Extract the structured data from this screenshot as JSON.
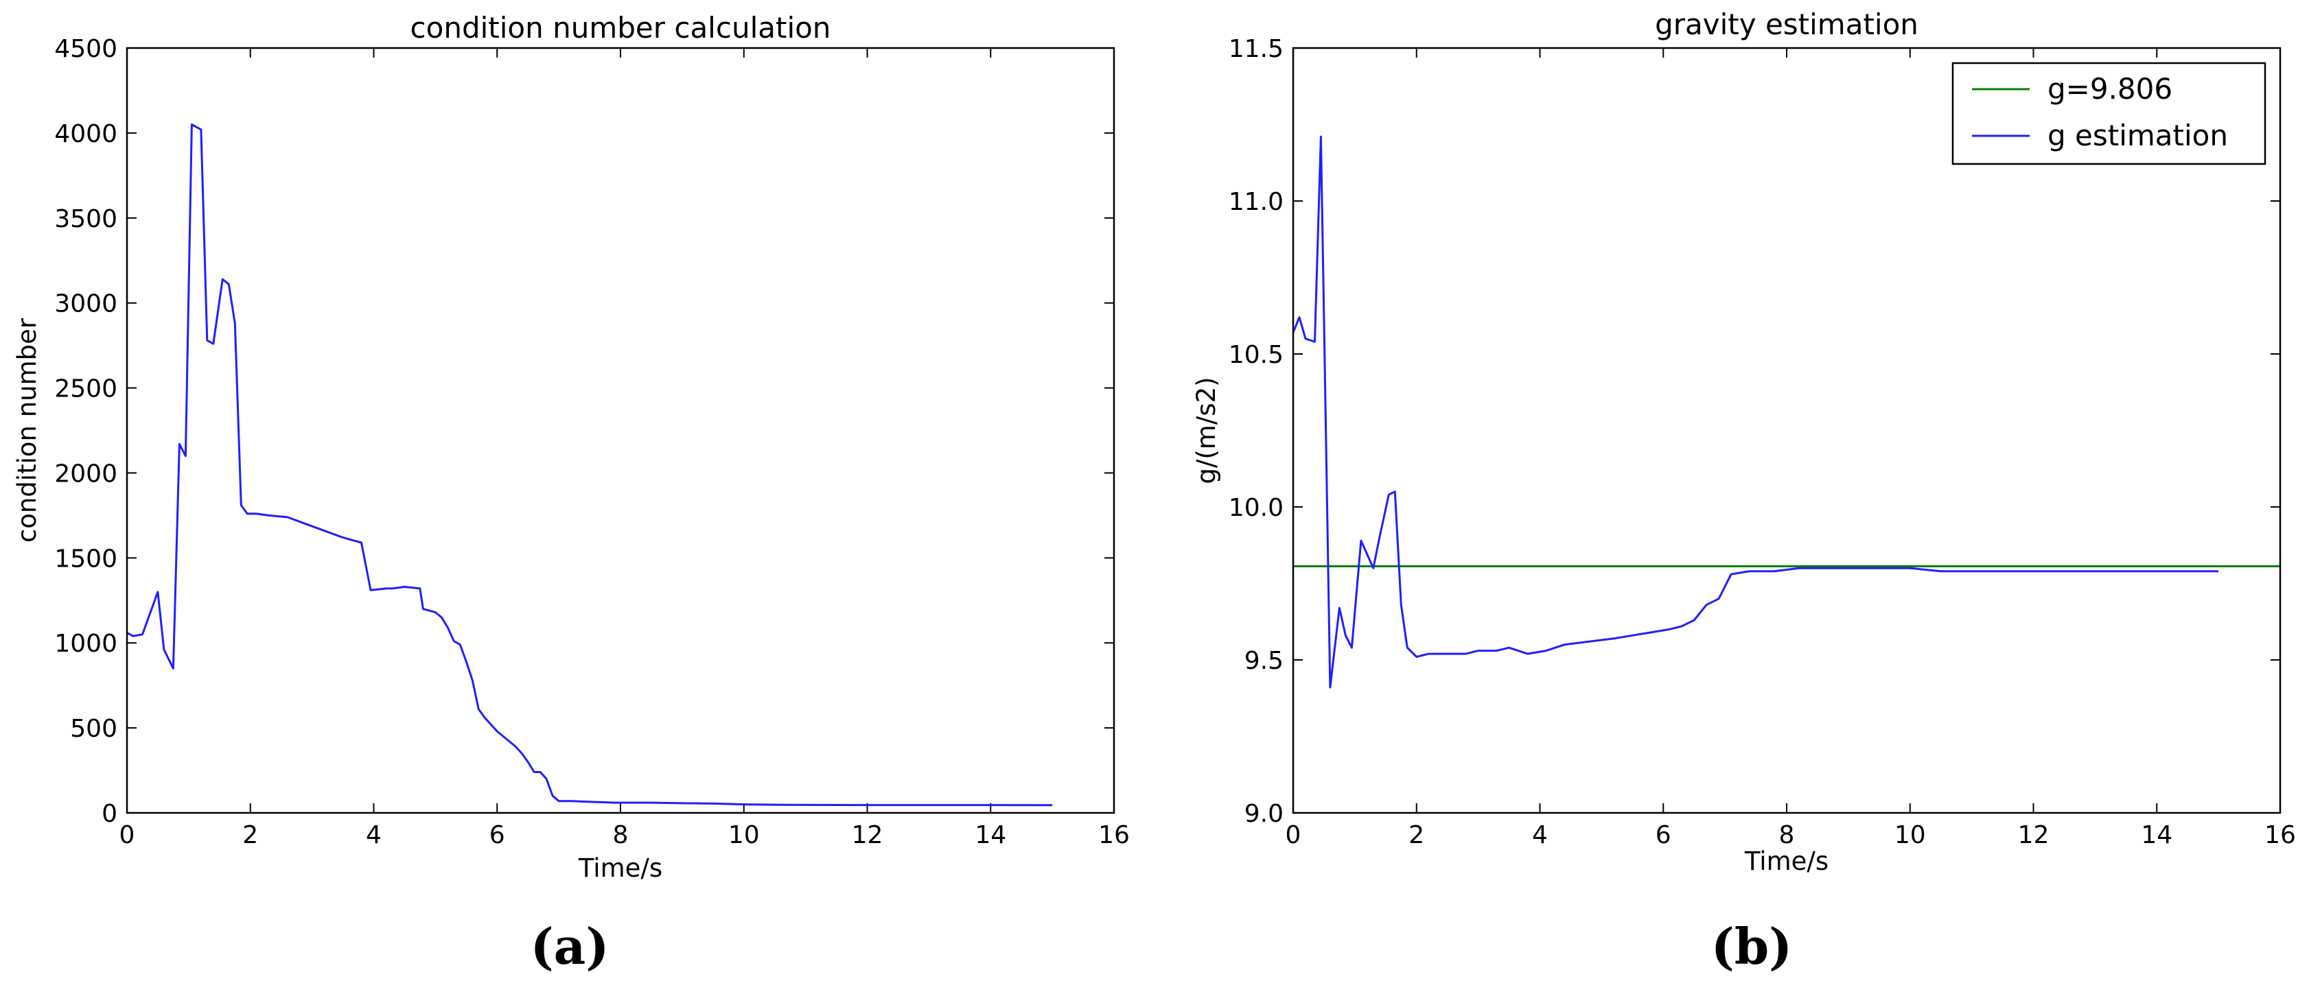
{
  "chart_data": [
    {
      "type": "line",
      "title": "condition number calculation",
      "xlabel": "Time/s",
      "ylabel": "condition number",
      "caption": "(a)",
      "xlim": [
        0,
        16
      ],
      "ylim": [
        0,
        4500
      ],
      "xticks": [
        "0",
        "2",
        "4",
        "6",
        "8",
        "10",
        "12",
        "14",
        "16"
      ],
      "yticks": [
        "0",
        "500",
        "1000",
        "1500",
        "2000",
        "2500",
        "3000",
        "3500",
        "4000",
        "4500"
      ],
      "grid": false,
      "colors": {
        "line": "#1f1fff"
      },
      "series": [
        {
          "x": [
            0,
            0.1,
            0.25,
            0.5,
            0.6,
            0.75,
            0.85,
            0.95,
            1.05,
            1.2,
            1.3,
            1.4,
            1.55,
            1.65,
            1.75,
            1.85,
            1.95,
            2.1,
            2.3,
            2.6,
            2.9,
            3.2,
            3.5,
            3.7,
            3.8,
            3.95,
            4.2,
            4.3,
            4.5,
            4.75,
            4.8,
            5.0,
            5.1,
            5.2,
            5.3,
            5.4,
            5.5,
            5.6,
            5.7,
            5.8,
            5.9,
            6.0,
            6.1,
            6.2,
            6.3,
            6.4,
            6.5,
            6.6,
            6.7,
            6.8,
            6.9,
            7.0,
            7.1,
            7.2,
            7.5,
            7.9,
            8.0,
            8.5,
            9.0,
            9.5,
            10.0,
            10.5,
            11,
            12,
            13,
            14,
            15
          ],
          "y": [
            1060,
            1040,
            1050,
            1300,
            960,
            850,
            2170,
            2100,
            4050,
            4020,
            2780,
            2760,
            3140,
            3110,
            2880,
            1810,
            1760,
            1760,
            1750,
            1740,
            1700,
            1660,
            1620,
            1600,
            1590,
            1310,
            1320,
            1320,
            1330,
            1320,
            1200,
            1180,
            1150,
            1090,
            1010,
            990,
            890,
            780,
            610,
            560,
            520,
            480,
            450,
            420,
            390,
            350,
            300,
            240,
            240,
            200,
            100,
            70,
            70,
            70,
            65,
            60,
            60,
            60,
            57,
            55,
            50,
            48,
            47,
            46,
            46,
            46,
            45
          ]
        }
      ]
    },
    {
      "type": "line",
      "title": "gravity estimation",
      "xlabel": "Time/s",
      "ylabel": "g/(m/s2)",
      "caption": "(b)",
      "xlim": [
        0,
        16
      ],
      "ylim": [
        9.0,
        11.5
      ],
      "xticks": [
        "0",
        "2",
        "4",
        "6",
        "8",
        "10",
        "12",
        "14",
        "16"
      ],
      "yticks": [
        "9.0",
        "9.5",
        "10.0",
        "10.5",
        "11.0",
        "11.5"
      ],
      "grid": false,
      "legend_position": "top-right",
      "colors": {
        "reference": "#008000",
        "estimate": "#1f1fff"
      },
      "series": [
        {
          "name": "g=9.806",
          "x": [
            0,
            16
          ],
          "y": [
            9.806,
            9.806
          ]
        },
        {
          "name": "g estimation",
          "x": [
            0,
            0.1,
            0.2,
            0.35,
            0.45,
            0.5,
            0.6,
            0.75,
            0.85,
            0.95,
            1.1,
            1.3,
            1.4,
            1.55,
            1.65,
            1.75,
            1.85,
            2.0,
            2.2,
            2.5,
            2.8,
            3.0,
            3.3,
            3.5,
            3.8,
            4.1,
            4.4,
            4.8,
            5.2,
            5.5,
            5.8,
            6.1,
            6.3,
            6.5,
            6.7,
            6.9,
            7.1,
            7.4,
            7.8,
            8.2,
            8.6,
            9.0,
            9.5,
            10.0,
            10.5,
            11,
            12,
            13,
            14,
            15
          ],
          "y": [
            10.57,
            10.62,
            10.55,
            10.54,
            11.21,
            10.62,
            9.41,
            9.67,
            9.58,
            9.54,
            9.89,
            9.8,
            9.9,
            10.04,
            10.05,
            9.68,
            9.54,
            9.51,
            9.52,
            9.52,
            9.52,
            9.53,
            9.53,
            9.54,
            9.52,
            9.53,
            9.55,
            9.56,
            9.57,
            9.58,
            9.59,
            9.6,
            9.61,
            9.63,
            9.68,
            9.7,
            9.78,
            9.79,
            9.79,
            9.8,
            9.8,
            9.8,
            9.8,
            9.8,
            9.79,
            9.79,
            9.79,
            9.79,
            9.79,
            9.79
          ]
        }
      ]
    }
  ]
}
